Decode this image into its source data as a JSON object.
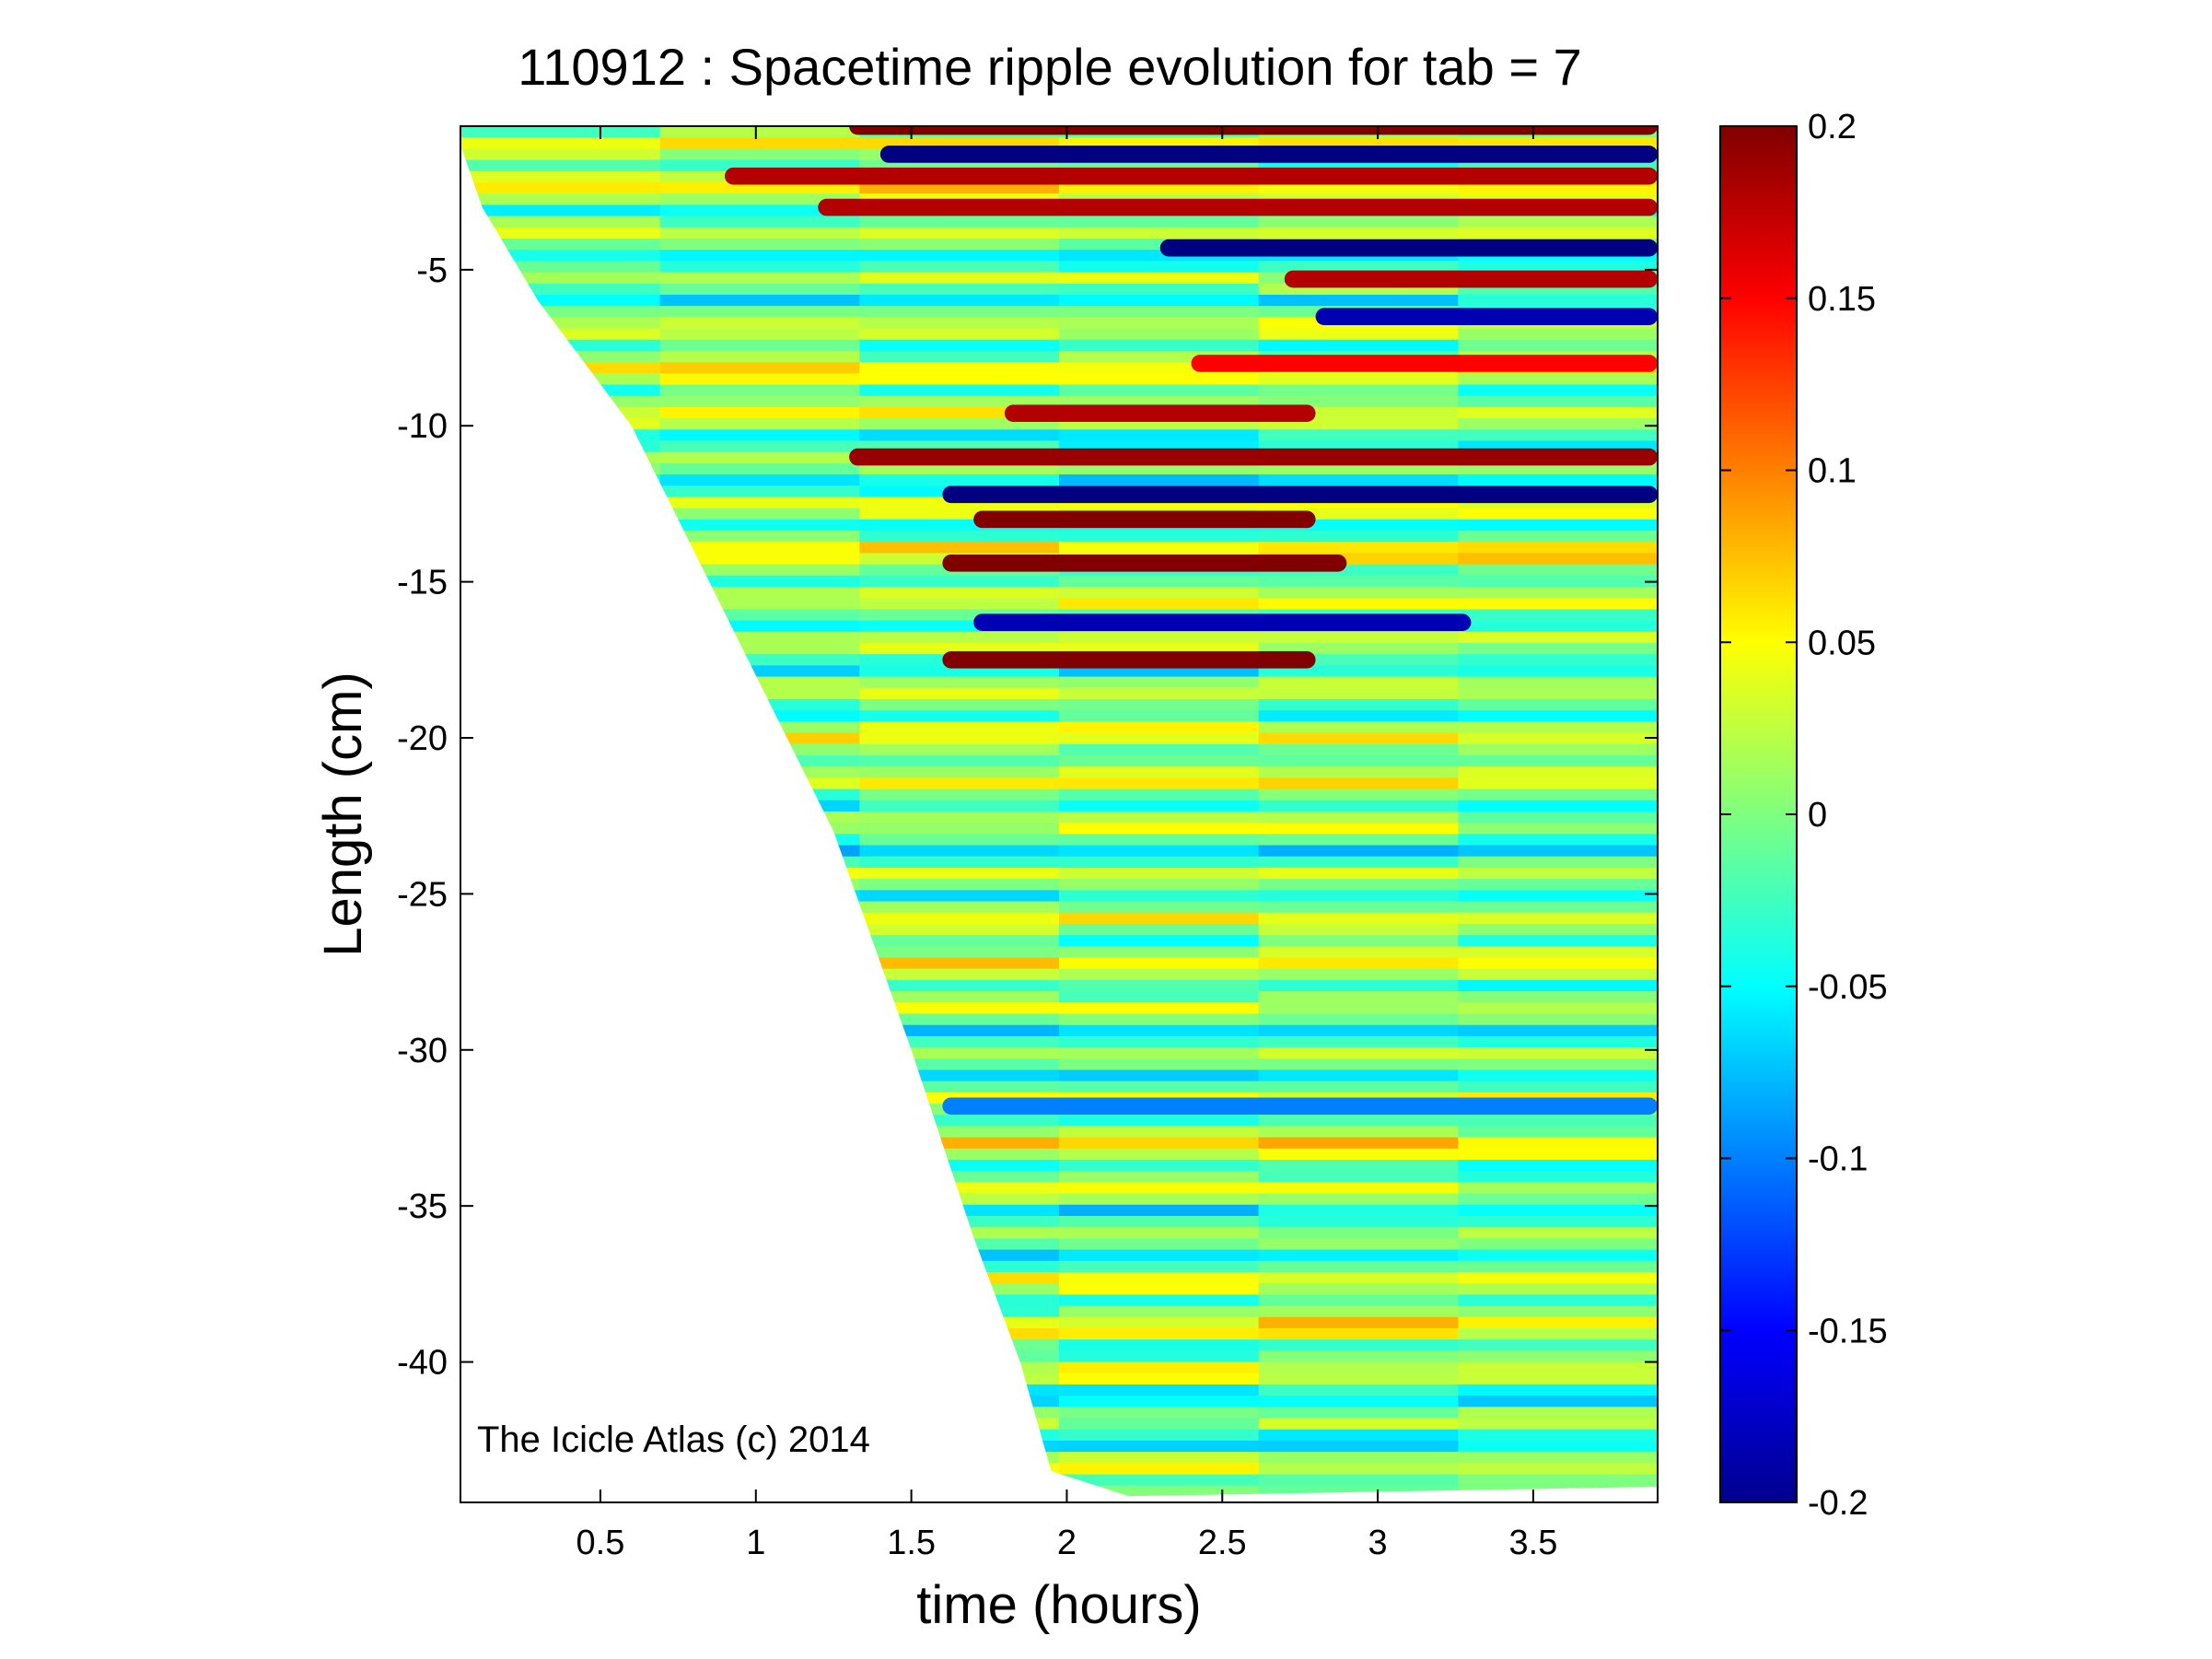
{
  "chart_data": {
    "type": "heatmap",
    "title": "110912 : Spacetime ripple evolution for tab = 7",
    "xlabel": "time (hours)",
    "ylabel": "Length (cm)",
    "xlim": [
      0.05,
      3.9
    ],
    "ylim": [
      -44.5,
      -0.4
    ],
    "xticks": [
      0.5,
      1,
      1.5,
      2,
      2.5,
      3,
      3.5
    ],
    "xtick_labels": [
      "0.5",
      "1",
      "1.5",
      "2",
      "2.5",
      "3",
      "3.5"
    ],
    "yticks": [
      -5,
      -10,
      -15,
      -20,
      -25,
      -30,
      -35,
      -40
    ],
    "ytick_labels": [
      "-5",
      "-10",
      "-15",
      "-20",
      "-25",
      "-30",
      "-35",
      "-40"
    ],
    "colorbar": {
      "range": [
        -0.2,
        0.2
      ],
      "ticks": [
        0.2,
        0.15,
        0.1,
        0.05,
        0,
        -0.05,
        -0.1,
        -0.15,
        -0.2
      ],
      "tick_labels": [
        "0.2",
        "0.15",
        "0.1",
        "0.05",
        "0",
        "-0.05",
        "-0.1",
        "-0.15",
        "-0.2"
      ],
      "colormap": "jet",
      "colors": [
        "#00008f",
        "#0000ff",
        "#00ffff",
        "#ffff00",
        "#ff0000",
        "#800000"
      ]
    },
    "annotation": "The Icicle Atlas (c) 2014",
    "grid": false,
    "data_extent_edge": [
      {
        "t": 0.05,
        "length": -1.0
      },
      {
        "t": 0.12,
        "length": -3.0
      },
      {
        "t": 0.3,
        "length": -6.0
      },
      {
        "t": 0.6,
        "length": -10.0
      },
      {
        "t": 0.95,
        "length": -17.0
      },
      {
        "t": 1.25,
        "length": -23.0
      },
      {
        "t": 1.5,
        "length": -30.0
      },
      {
        "t": 1.7,
        "length": -36.0
      },
      {
        "t": 1.85,
        "length": -40.0
      },
      {
        "t": 1.95,
        "length": -43.5
      },
      {
        "t": 2.2,
        "length": -44.3
      },
      {
        "t": 3.9,
        "length": -44.0
      }
    ],
    "features": [
      {
        "length": -0.4,
        "t_start": 1.3,
        "t_end": 3.9,
        "value": 0.2
      },
      {
        "length": -1.3,
        "t_start": 1.4,
        "t_end": 3.9,
        "value": -0.2
      },
      {
        "length": -2.0,
        "t_start": 0.9,
        "t_end": 3.9,
        "value": 0.18
      },
      {
        "length": -3.0,
        "t_start": 1.2,
        "t_end": 3.9,
        "value": 0.18
      },
      {
        "length": -4.3,
        "t_start": 2.3,
        "t_end": 3.9,
        "value": -0.2
      },
      {
        "length": -5.3,
        "t_start": 2.7,
        "t_end": 3.9,
        "value": 0.18
      },
      {
        "length": -6.5,
        "t_start": 2.8,
        "t_end": 3.9,
        "value": -0.18
      },
      {
        "length": -8.0,
        "t_start": 2.4,
        "t_end": 3.9,
        "value": 0.15
      },
      {
        "length": -9.6,
        "t_start": 1.8,
        "t_end": 2.8,
        "value": 0.18
      },
      {
        "length": -11.0,
        "t_start": 1.3,
        "t_end": 3.9,
        "value": 0.19
      },
      {
        "length": -12.2,
        "t_start": 1.6,
        "t_end": 3.9,
        "value": -0.2
      },
      {
        "length": -13.0,
        "t_start": 1.7,
        "t_end": 2.8,
        "value": 0.2
      },
      {
        "length": -14.4,
        "t_start": 1.6,
        "t_end": 2.9,
        "value": 0.2
      },
      {
        "length": -16.3,
        "t_start": 1.7,
        "t_end": 3.3,
        "value": -0.18
      },
      {
        "length": -17.5,
        "t_start": 1.6,
        "t_end": 2.8,
        "value": 0.2
      },
      {
        "length": -31.8,
        "t_start": 1.6,
        "t_end": 3.9,
        "value": -0.1
      }
    ]
  }
}
